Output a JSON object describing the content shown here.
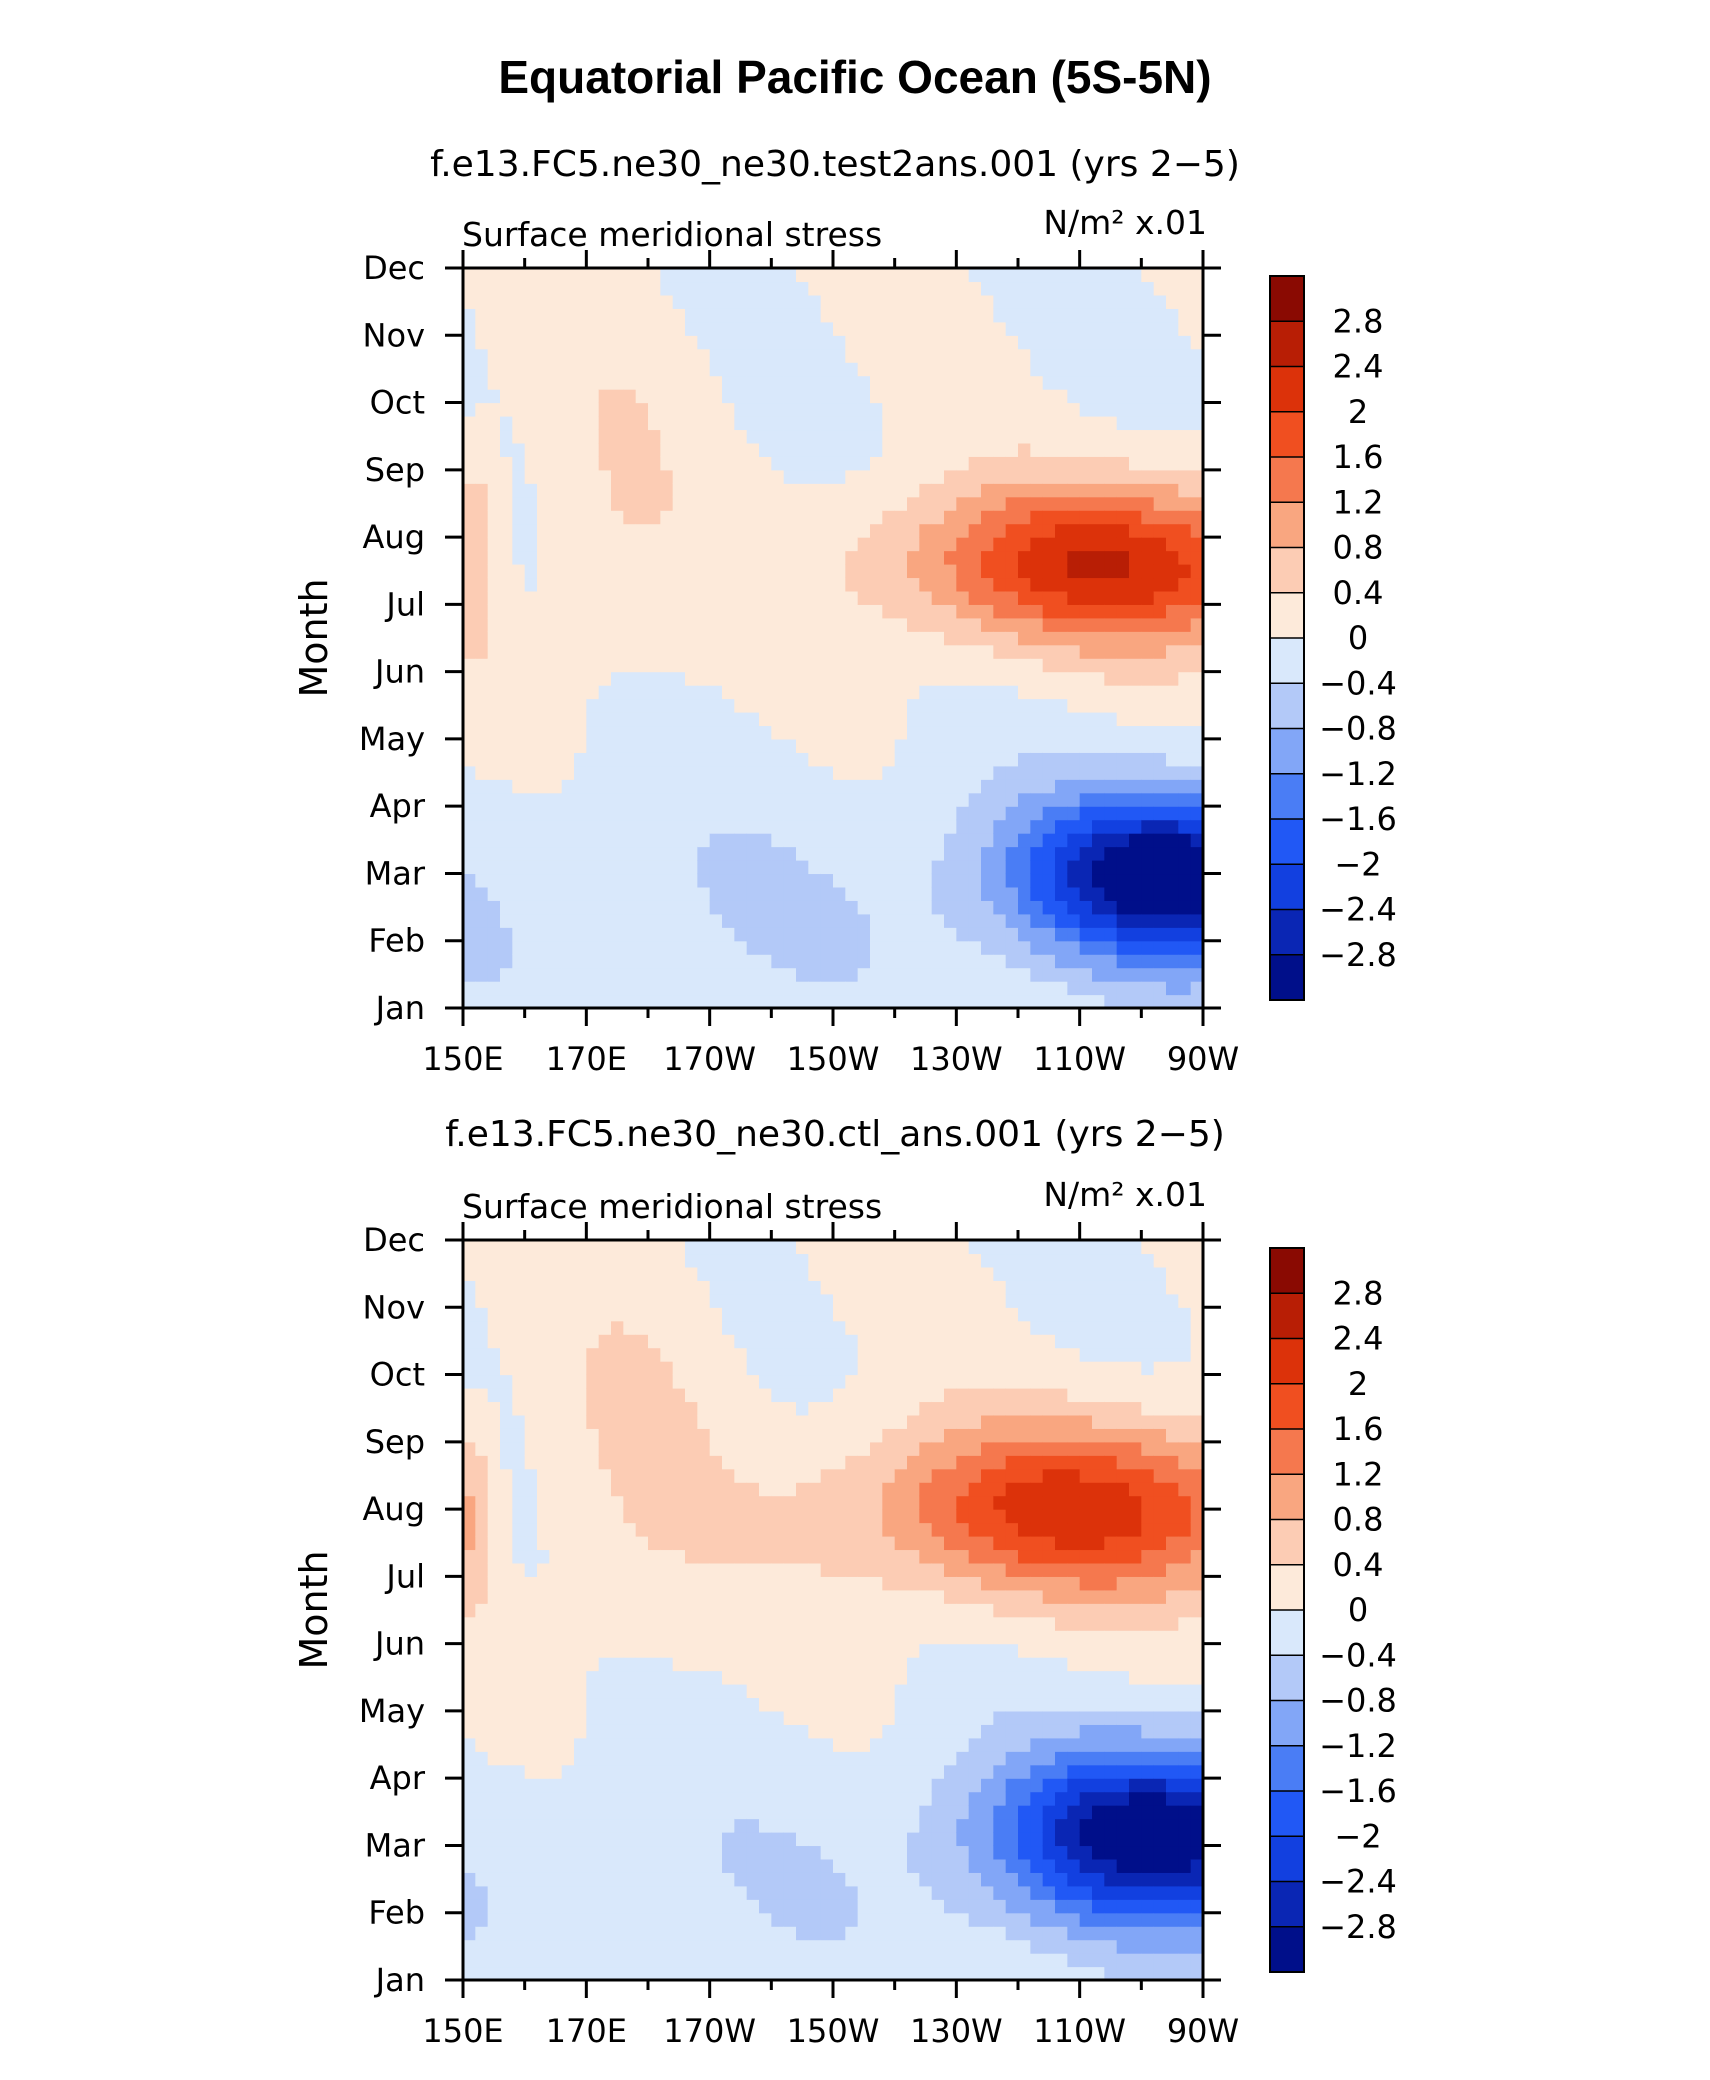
{
  "title": "Equatorial Pacific Ocean (5S-5N)",
  "colors": {
    "levels": [
      "#000f8a",
      "#0a26b4",
      "#1240e0",
      "#2158f5",
      "#4a7df5",
      "#82a6f7",
      "#b3c9f8",
      "#d9e8fb",
      "#fdeada",
      "#fcccb4",
      "#f9a680",
      "#f5784e",
      "#f04f20",
      "#dc320a",
      "#b81e05",
      "#8a0a02"
    ]
  },
  "chart_data": [
    {
      "type": "heatmap",
      "title": "f.e13.FC5.ne30_ne30.test2ans.001 (yrs 2−5)",
      "left_string": "Surface meridional stress",
      "right_string": "N/m² x.01",
      "ylabel": "Month",
      "x_tick_labels": [
        "150E",
        "170E",
        "170W",
        "150W",
        "130W",
        "110W",
        "90W"
      ],
      "x_tick_values": [
        150,
        170,
        190,
        210,
        230,
        250,
        270
      ],
      "x_range": [
        150,
        270
      ],
      "y_tick_labels": [
        "Jan",
        "Feb",
        "Mar",
        "Apr",
        "May",
        "Jun",
        "Jul",
        "Aug",
        "Sep",
        "Oct",
        "Nov",
        "Dec"
      ],
      "colorbar_levels": [
        "−2.8",
        "−2.4",
        "−2",
        "−1.6",
        "−1.2",
        "−0.8",
        "−0.4",
        "0",
        "0.4",
        "0.8",
        "1.2",
        "1.6",
        "2",
        "2.4",
        "2.8"
      ],
      "pattern": {
        "cold": {
          "amp": -3.1,
          "lon": 265,
          "month": 2.0,
          "sx": 24,
          "sy": 1.2
        },
        "warm": {
          "amp": 2.35,
          "lon": 255,
          "month": 6.6,
          "sx": 34,
          "sy": 1.2
        },
        "west_band": {
          "amp": 0.75,
          "lon": 152,
          "month": 6.8,
          "sx": 4,
          "sy": 1.6
        },
        "west_bias": -0.35,
        "mid_warm": {
          "amp": 0.35,
          "lon": 175,
          "month": 7.5,
          "sx": 14,
          "sy": 3.0
        }
      }
    },
    {
      "type": "heatmap",
      "title": "f.e13.FC5.ne30_ne30.ctl_ans.001 (yrs 2−5)",
      "left_string": "Surface meridional stress",
      "right_string": "N/m² x.01",
      "ylabel": "Month",
      "x_tick_labels": [
        "150E",
        "170E",
        "170W",
        "150W",
        "130W",
        "110W",
        "90W"
      ],
      "x_tick_values": [
        150,
        170,
        190,
        210,
        230,
        250,
        270
      ],
      "x_range": [
        150,
        270
      ],
      "y_tick_labels": [
        "Jan",
        "Feb",
        "Mar",
        "Apr",
        "May",
        "Jun",
        "Jul",
        "Aug",
        "Sep",
        "Oct",
        "Nov",
        "Dec"
      ],
      "colorbar_levels": [
        "−2.8",
        "−2.4",
        "−2",
        "−1.6",
        "−1.2",
        "−0.8",
        "−0.4",
        "0",
        "0.4",
        "0.8",
        "1.2",
        "1.6",
        "2",
        "2.4",
        "2.8"
      ],
      "pattern": {
        "cold": {
          "amp": -3.0,
          "lon": 263,
          "month": 2.2,
          "sx": 26,
          "sy": 1.3
        },
        "warm": {
          "amp": 2.2,
          "lon": 250,
          "month": 7.0,
          "sx": 36,
          "sy": 1.3
        },
        "west_band": {
          "amp": 0.9,
          "lon": 151,
          "month": 6.9,
          "sx": 4,
          "sy": 1.4
        },
        "west_bias": -0.3,
        "mid_warm": {
          "amp": 0.4,
          "lon": 178,
          "month": 7.8,
          "sx": 16,
          "sy": 3.2
        }
      }
    }
  ]
}
